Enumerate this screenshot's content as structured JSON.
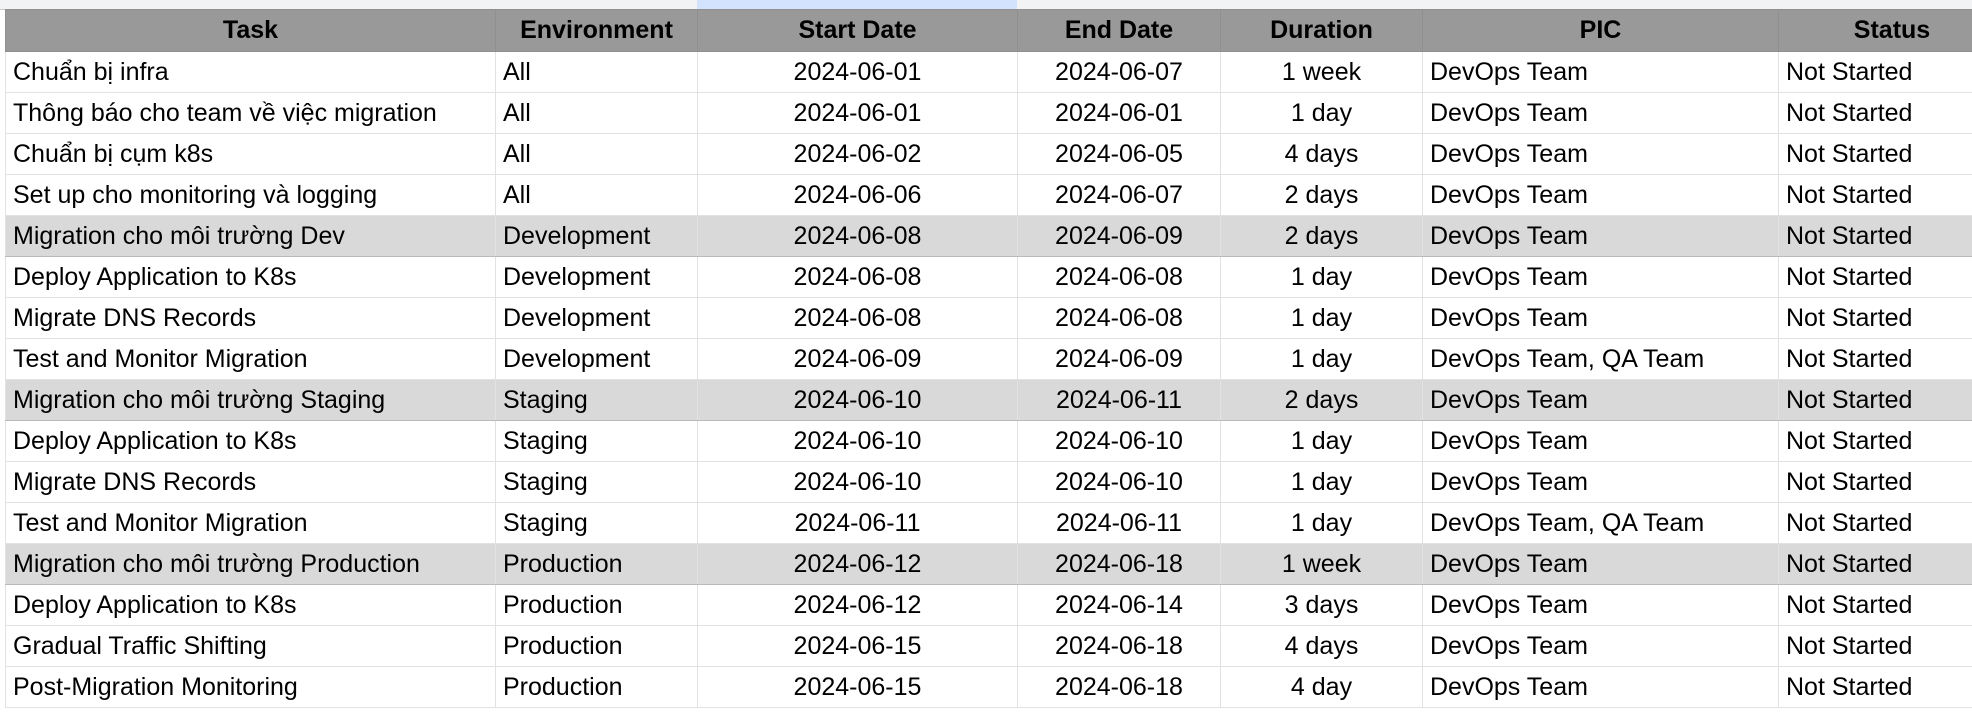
{
  "columns": [
    "Task",
    "Environment",
    "Start Date",
    "End Date",
    "Duration",
    "PIC",
    "Status"
  ],
  "rows": [
    {
      "task": "Chuẩn bị infra",
      "env": "All",
      "start": "2024-06-01",
      "end": "2024-06-07",
      "duration": "1 week",
      "pic": "DevOps Team",
      "status": "Not Started",
      "phase": false
    },
    {
      "task": "Thông báo cho team về việc migration",
      "env": "All",
      "start": "2024-06-01",
      "end": "2024-06-01",
      "duration": "1 day",
      "pic": "DevOps Team",
      "status": "Not Started",
      "phase": false
    },
    {
      "task": "Chuẩn bị cụm k8s",
      "env": "All",
      "start": "2024-06-02",
      "end": "2024-06-05",
      "duration": "4 days",
      "pic": "DevOps Team",
      "status": "Not Started",
      "phase": false
    },
    {
      "task": "Set up cho monitoring và logging",
      "env": "All",
      "start": "2024-06-06",
      "end": "2024-06-07",
      "duration": "2 days",
      "pic": "DevOps Team",
      "status": "Not Started",
      "phase": false
    },
    {
      "task": "Migration cho môi trường Dev",
      "env": "Development",
      "start": "2024-06-08",
      "end": "2024-06-09",
      "duration": "2 days",
      "pic": "DevOps Team",
      "status": "Not Started",
      "phase": true
    },
    {
      "task": "Deploy Application to K8s",
      "env": "Development",
      "start": "2024-06-08",
      "end": "2024-06-08",
      "duration": "1 day",
      "pic": "DevOps Team",
      "status": "Not Started",
      "phase": false
    },
    {
      "task": "Migrate DNS Records",
      "env": "Development",
      "start": "2024-06-08",
      "end": "2024-06-08",
      "duration": "1 day",
      "pic": "DevOps Team",
      "status": "Not Started",
      "phase": false
    },
    {
      "task": "Test and Monitor Migration",
      "env": "Development",
      "start": "2024-06-09",
      "end": "2024-06-09",
      "duration": "1 day",
      "pic": "DevOps Team, QA Team",
      "status": "Not Started",
      "phase": false
    },
    {
      "task": "Migration cho môi trường Staging",
      "env": "Staging",
      "start": "2024-06-10",
      "end": "2024-06-11",
      "duration": "2 days",
      "pic": "DevOps Team",
      "status": "Not Started",
      "phase": true
    },
    {
      "task": "Deploy Application to K8s",
      "env": "Staging",
      "start": "2024-06-10",
      "end": "2024-06-10",
      "duration": "1 day",
      "pic": "DevOps Team",
      "status": "Not Started",
      "phase": false
    },
    {
      "task": "Migrate DNS Records",
      "env": "Staging",
      "start": "2024-06-10",
      "end": "2024-06-10",
      "duration": "1 day",
      "pic": "DevOps Team",
      "status": "Not Started",
      "phase": false
    },
    {
      "task": "Test and Monitor Migration",
      "env": "Staging",
      "start": "2024-06-11",
      "end": "2024-06-11",
      "duration": "1 day",
      "pic": "DevOps Team, QA Team",
      "status": "Not Started",
      "phase": false
    },
    {
      "task": "Migration cho môi trường Production",
      "env": "Production",
      "start": "2024-06-12",
      "end": "2024-06-18",
      "duration": "1 week",
      "pic": "DevOps Team",
      "status": "Not Started",
      "phase": true
    },
    {
      "task": "Deploy Application to K8s",
      "env": "Production",
      "start": "2024-06-12",
      "end": "2024-06-14",
      "duration": "3 days",
      "pic": "DevOps Team",
      "status": "Not Started",
      "phase": false
    },
    {
      "task": "Gradual Traffic Shifting",
      "env": "Production",
      "start": "2024-06-15",
      "end": "2024-06-18",
      "duration": "4 days",
      "pic": "DevOps Team",
      "status": "Not Started",
      "phase": false
    },
    {
      "task": "Post-Migration Monitoring",
      "env": "Production",
      "start": "2024-06-15",
      "end": "2024-06-18",
      "duration": "4 day",
      "pic": "DevOps Team",
      "status": "Not Started",
      "phase": false
    }
  ]
}
